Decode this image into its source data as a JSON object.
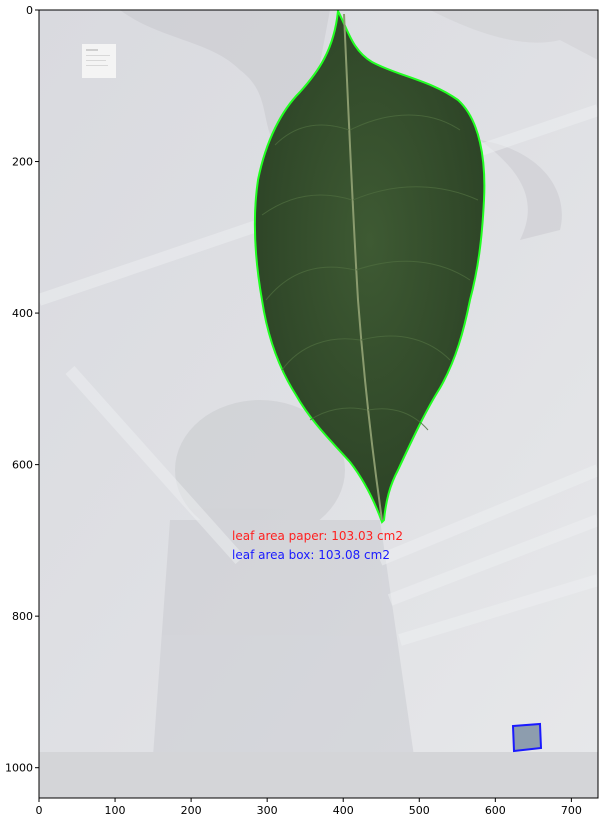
{
  "image": {
    "subject": "leaf",
    "overlay": {
      "paper_label": "leaf area paper: 103.03 cm2",
      "box_label": "leaf area box: 103.08 cm2",
      "paper_color": "#ff2020",
      "box_color": "#1a1aff"
    },
    "contour_colors": {
      "leaf": "#22ff22",
      "box": "#1a1aff"
    }
  },
  "axes": {
    "x_ticks": [
      0,
      100,
      200,
      300,
      400,
      500,
      600,
      700
    ],
    "y_ticks": [
      0,
      200,
      400,
      600,
      800,
      1000
    ],
    "xlim": [
      0,
      735
    ],
    "ylim": [
      1040,
      0
    ]
  }
}
